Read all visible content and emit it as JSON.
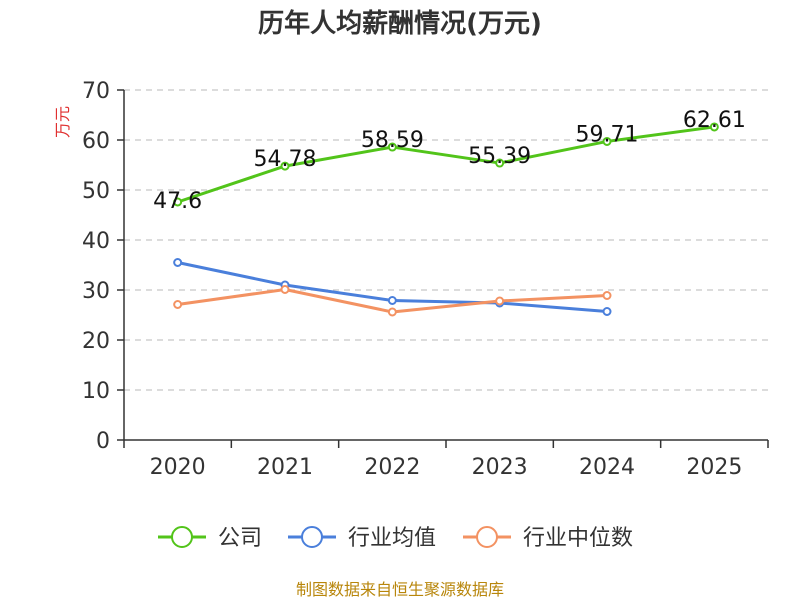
{
  "chart_data": {
    "type": "line",
    "title": "历年人均薪酬情况(万元)",
    "ylabel": "万元",
    "xlabel": "",
    "ylim": [
      0,
      70
    ],
    "yticks": [
      0,
      10,
      20,
      30,
      40,
      50,
      60,
      70
    ],
    "categories": [
      "2020",
      "2021",
      "2022",
      "2023",
      "2024",
      "2025"
    ],
    "grid": true,
    "legend_position": "bottom-center",
    "series": [
      {
        "name": "公司",
        "color": "#52c41a",
        "values": [
          47.6,
          54.78,
          58.59,
          55.39,
          59.71,
          62.61
        ],
        "labels": [
          "47.6",
          "54.78",
          "58.59",
          "55.39",
          "59.71",
          "62.61"
        ]
      },
      {
        "name": "行业均值",
        "color": "#4a7fdb",
        "values": [
          35.5,
          31.0,
          27.9,
          27.4,
          25.7,
          null
        ]
      },
      {
        "name": "行业中位数",
        "color": "#f39262",
        "values": [
          27.1,
          30.1,
          25.6,
          27.8,
          28.9,
          null
        ]
      }
    ]
  },
  "footer": {
    "source": "制图数据来自恒生聚源数据库"
  }
}
